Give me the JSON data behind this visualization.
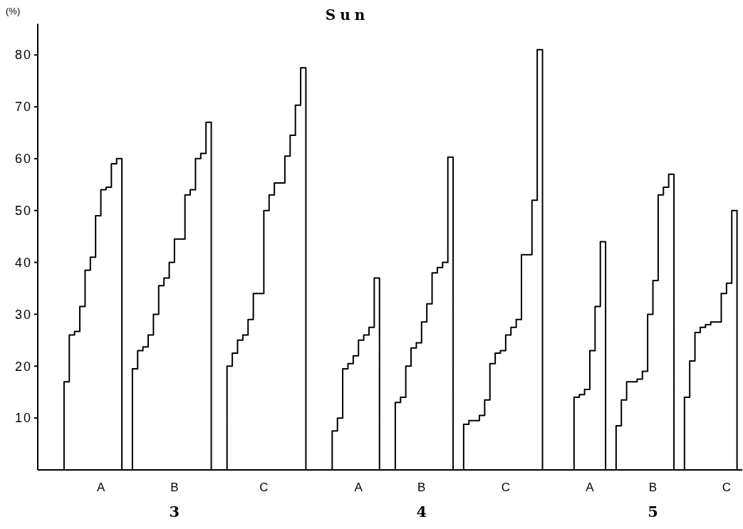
{
  "chart_data": {
    "type": "step",
    "title": "Sun",
    "ylabel": "(%)",
    "ylim": [
      0,
      86
    ],
    "yticks": [
      10,
      20,
      30,
      40,
      50,
      60,
      70,
      80
    ],
    "categories": [
      null,
      null,
      null,
      null,
      null,
      null,
      null,
      null,
      null,
      null,
      null,
      null,
      "A",
      null,
      null,
      null,
      null,
      null,
      null,
      null,
      null,
      null,
      null,
      null,
      null,
      null,
      "B",
      null,
      null,
      null,
      null,
      null,
      null,
      null,
      null,
      null,
      null,
      null,
      null,
      null,
      null,
      null,
      null,
      "C",
      null,
      null,
      null,
      null,
      null,
      null,
      null,
      null,
      null,
      null,
      null,
      null,
      null,
      null,
      null,
      null,
      null,
      "A",
      null,
      null,
      null,
      null,
      null,
      null,
      null,
      null,
      null,
      null,
      null,
      "B",
      null,
      null,
      null,
      null,
      null,
      null,
      null,
      null,
      null,
      null,
      null,
      null,
      null,
      null,
      null,
      "C",
      null,
      null,
      null,
      null,
      null,
      null,
      null,
      null,
      null,
      null,
      null,
      null,
      null,
      null,
      null,
      "A",
      null,
      null,
      null,
      null,
      null,
      null,
      null,
      null,
      null,
      null,
      null,
      "B",
      null,
      null,
      null,
      null,
      null,
      null,
      null,
      null,
      null,
      null,
      null,
      null,
      null,
      "C",
      null,
      null,
      null
    ],
    "annotations": [
      "3",
      "4",
      "5"
    ],
    "series": [
      {
        "color": "#000000",
        "values": [
          null,
          null,
          null,
          null,
          0,
          17,
          26,
          26.7,
          31.5,
          38.5,
          41,
          49,
          54,
          54.5,
          59,
          60,
          0,
          0,
          19.5,
          23,
          23.7,
          26,
          30,
          35.5,
          37,
          40,
          44.5,
          44.5,
          53,
          54,
          60,
          61,
          67,
          0,
          null,
          0,
          20,
          22.5,
          25,
          26,
          29,
          34,
          34,
          50,
          53,
          55.3,
          55.3,
          60.5,
          64.5,
          70.3,
          77.5,
          0,
          null,
          null,
          null,
          0,
          7.5,
          10,
          19.5,
          20.5,
          22,
          25,
          26,
          27.5,
          37,
          0,
          null,
          0,
          13,
          14,
          20,
          23.5,
          24.5,
          28.5,
          32,
          38,
          39,
          40,
          60.3,
          0,
          0,
          8.8,
          9.5,
          9.5,
          10.5,
          13.5,
          20.5,
          22.5,
          23,
          26,
          27.5,
          29,
          41.5,
          41.5,
          52,
          81,
          0,
          null,
          null,
          null,
          null,
          0,
          14,
          14.5,
          15.5,
          23,
          31.5,
          44,
          0,
          0,
          8.5,
          13.5,
          17,
          17,
          17.5,
          19,
          30,
          36.5,
          53,
          54.5,
          57,
          0,
          0,
          14,
          21,
          26.5,
          27.5,
          28,
          28.5,
          28.5,
          34,
          36,
          50,
          0,
          null
        ]
      }
    ]
  }
}
